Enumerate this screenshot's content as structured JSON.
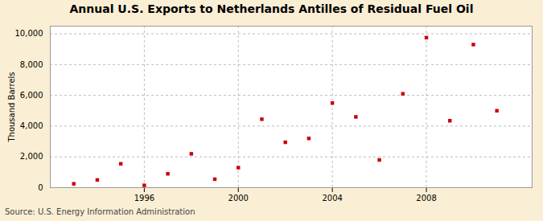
{
  "chart_data": {
    "type": "scatter",
    "title": "Annual U.S. Exports to Netherlands Antilles of Residual Fuel Oil",
    "ylabel": "Thousand Barrels",
    "source": "Source: U.S. Energy Information Administration",
    "x": [
      1993,
      1994,
      1995,
      1996,
      1997,
      1998,
      1999,
      2000,
      2001,
      2002,
      2003,
      2004,
      2005,
      2006,
      2007,
      2008,
      2009,
      2010,
      2011
    ],
    "values": [
      250,
      500,
      1550,
      150,
      900,
      2200,
      550,
      1300,
      4450,
      2950,
      3200,
      5500,
      4600,
      1800,
      6100,
      9750,
      4350,
      9300,
      5000
    ],
    "color": "#cc0000",
    "marker": "square",
    "xlim": [
      1992.0,
      2012.5
    ],
    "ylim": [
      0,
      10500
    ],
    "xticks": [
      1996,
      2000,
      2004,
      2008
    ],
    "yticks": [
      0,
      {
        "value": 2000,
        "label": "2,000"
      },
      {
        "value": 4000,
        "label": "4,000"
      },
      {
        "value": 6000,
        "label": "6,000"
      },
      {
        "value": 8000,
        "label": "8,000"
      },
      {
        "value": 10000,
        "label": "10,000"
      }
    ],
    "grid": true
  }
}
